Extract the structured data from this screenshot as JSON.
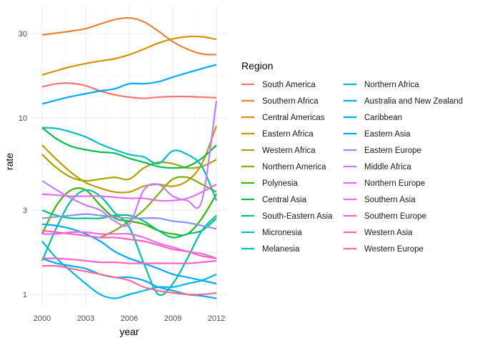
{
  "chart_data": {
    "type": "line",
    "xlabel": "year",
    "ylabel": "rate",
    "x_ticks": [
      2000,
      2003,
      2006,
      2009,
      2012
    ],
    "y_ticks": [
      1,
      3,
      10,
      30
    ],
    "y_scale": "log",
    "xlim": [
      1999.3,
      2012.7
    ],
    "ylim": [
      0.83,
      44
    ],
    "grid": true,
    "legend": {
      "title": "Region",
      "position": "right",
      "columns": 2
    },
    "series": [
      {
        "name": "South America",
        "color": "#F8766D",
        "x": [
          2000,
          2001,
          2002,
          2003,
          2004,
          2005,
          2006,
          2007,
          2008,
          2009,
          2010,
          2011,
          2012
        ],
        "y": [
          15.0,
          15.6,
          15.7,
          15.2,
          14.2,
          13.5,
          13.1,
          12.9,
          13.1,
          13.2,
          13.2,
          13.1,
          13.0
        ]
      },
      {
        "name": "Southern Africa",
        "color": "#EA8331",
        "x": [
          2000,
          2001,
          2002,
          2003,
          2004,
          2005,
          2006,
          2007,
          2008,
          2009,
          2010,
          2011,
          2012
        ],
        "y": [
          29.5,
          30.2,
          31.0,
          32.0,
          34.0,
          36.0,
          36.8,
          35.0,
          31.0,
          27.0,
          24.5,
          23.0,
          22.8
        ]
      },
      {
        "name": "Central Americas",
        "color": "#D89000",
        "x": [
          2000,
          2001,
          2002,
          2003,
          2004,
          2005,
          2006,
          2007,
          2008,
          2009,
          2010,
          2011,
          2012
        ],
        "y": [
          17.5,
          18.5,
          19.5,
          20.3,
          21.0,
          21.6,
          22.8,
          24.5,
          26.5,
          28.0,
          28.8,
          28.8,
          27.8
        ]
      },
      {
        "name": "Eastern Africa",
        "color": "#C09B00",
        "x": [
          2000,
          2001,
          2002,
          2003,
          2004,
          2005,
          2006,
          2007,
          2008,
          2009,
          2010,
          2011,
          2012
        ],
        "y": [
          7.0,
          5.8,
          4.9,
          4.3,
          4.0,
          3.8,
          3.8,
          4.1,
          4.2,
          4.1,
          4.4,
          5.5,
          9.0
        ]
      },
      {
        "name": "Western Africa",
        "color": "#A3A500",
        "x": [
          2000,
          2001,
          2002,
          2003,
          2004,
          2005,
          2006,
          2007,
          2008,
          2009,
          2010,
          2011,
          2012
        ],
        "y": [
          6.2,
          5.2,
          4.6,
          4.4,
          4.5,
          4.6,
          4.5,
          5.2,
          5.6,
          5.5,
          5.2,
          5.3,
          5.8
        ]
      },
      {
        "name": "Northern America",
        "color": "#7CAE00",
        "x": [
          2004,
          2005,
          2006,
          2007,
          2008,
          2009,
          2010,
          2011,
          2012
        ],
        "y": [
          2.1,
          2.3,
          2.6,
          3.0,
          3.7,
          4.5,
          4.6,
          4.2,
          3.8
        ]
      },
      {
        "name": "Polynesia",
        "color": "#39B600",
        "x": [
          2000,
          2001,
          2002,
          2003,
          2004,
          2005,
          2006,
          2007,
          2008,
          2009,
          2010,
          2011,
          2012
        ],
        "y": [
          2.2,
          3.2,
          3.9,
          3.9,
          3.2,
          2.7,
          2.6,
          2.5,
          2.3,
          2.2,
          2.2,
          2.7,
          3.7
        ]
      },
      {
        "name": "Central Asia",
        "color": "#00BB4E",
        "x": [
          2000,
          2001,
          2002,
          2003,
          2004,
          2005,
          2006,
          2007,
          2008,
          2009,
          2010,
          2011,
          2012
        ],
        "y": [
          8.8,
          7.6,
          6.9,
          6.6,
          6.4,
          6.3,
          5.9,
          5.6,
          5.3,
          5.2,
          5.3,
          5.9,
          7.0
        ]
      },
      {
        "name": "South-Eastern Asia",
        "color": "#00BF7D",
        "x": [
          2000,
          2001,
          2002,
          2003,
          2004,
          2005,
          2006,
          2007,
          2008,
          2009,
          2010,
          2011,
          2012
        ],
        "y": [
          3.0,
          2.8,
          2.7,
          2.7,
          2.7,
          2.8,
          2.8,
          2.6,
          2.3,
          2.1,
          2.2,
          2.3,
          2.7
        ]
      },
      {
        "name": "Micronesia",
        "color": "#00C1A3",
        "x": [
          2000,
          2001,
          2002,
          2003,
          2004,
          2005,
          2006,
          2007,
          2008,
          2009,
          2010,
          2011,
          2012
        ],
        "y": [
          1.55,
          2.4,
          3.4,
          3.9,
          3.6,
          2.9,
          2.4,
          1.5,
          1.0,
          1.15,
          1.6,
          2.3,
          2.8
        ]
      },
      {
        "name": "Melanesia",
        "color": "#00BFC4",
        "x": [
          2000,
          2001,
          2002,
          2003,
          2004,
          2005,
          2006,
          2007,
          2008,
          2009,
          2010,
          2011,
          2012
        ],
        "y": [
          8.8,
          8.7,
          8.3,
          7.8,
          7.1,
          6.6,
          6.2,
          6.0,
          5.5,
          6.5,
          6.2,
          5.3,
          3.4
        ]
      },
      {
        "name": "Northern Africa",
        "color": "#00B8E7",
        "x": [
          2000,
          2001,
          2002,
          2003,
          2004,
          2005,
          2006,
          2007,
          2008,
          2009,
          2010,
          2011,
          2012
        ],
        "y": [
          2.0,
          1.6,
          1.35,
          1.15,
          1.0,
          0.95,
          1.0,
          1.05,
          1.1,
          1.1,
          1.15,
          1.2,
          1.3
        ]
      },
      {
        "name": "Australia and New Zealand",
        "color": "#00A9FF",
        "x": [
          2000,
          2001,
          2002,
          2003,
          2004,
          2005,
          2006,
          2007,
          2008,
          2009,
          2010,
          2011,
          2012
        ],
        "y": [
          1.6,
          1.5,
          1.45,
          1.4,
          1.3,
          1.25,
          1.25,
          1.2,
          1.1,
          1.05,
          1.0,
          0.98,
          0.95
        ]
      },
      {
        "name": "Caribbean",
        "color": "#00A9FF",
        "x": [
          2000,
          2001,
          2002,
          2003,
          2004,
          2005,
          2006,
          2007,
          2008,
          2009,
          2010,
          2011,
          2012
        ],
        "y": [
          12.0,
          12.6,
          13.2,
          13.7,
          14.2,
          14.6,
          15.6,
          15.6,
          16.0,
          17.0,
          18.0,
          19.0,
          20.0
        ]
      },
      {
        "name": "Eastern Asia",
        "color": "#00A9FF",
        "x": [
          2000,
          2001,
          2002,
          2003,
          2004,
          2005,
          2006,
          2007,
          2008,
          2009,
          2010,
          2011,
          2012
        ],
        "y": [
          2.5,
          2.45,
          2.35,
          2.2,
          2.0,
          1.75,
          1.6,
          1.5,
          1.4,
          1.3,
          1.25,
          1.2,
          1.15
        ]
      },
      {
        "name": "Eastern Europe",
        "color": "#8494FF",
        "x": [
          2000,
          2001,
          2002,
          2003,
          2004,
          2005,
          2006,
          2007,
          2008,
          2009,
          2010,
          2011,
          2012
        ],
        "y": [
          2.7,
          2.75,
          2.8,
          2.85,
          2.8,
          2.75,
          2.7,
          2.7,
          2.7,
          2.6,
          2.55,
          2.45,
          2.35
        ]
      },
      {
        "name": "Middle Africa",
        "color": "#C77CFF",
        "x": [
          2000,
          2001,
          2002,
          2003,
          2004,
          2005,
          2006,
          2007,
          2008,
          2009,
          2010,
          2011,
          2012
        ],
        "y": [
          4.4,
          3.9,
          3.5,
          3.2,
          3.0,
          2.6,
          2.5,
          3.9,
          4.2,
          3.6,
          3.4,
          3.4,
          12.5
        ]
      },
      {
        "name": "Northern Europe",
        "color": "#E76BF3",
        "x": [
          2000,
          2001,
          2002,
          2003,
          2004,
          2005,
          2006,
          2007,
          2008,
          2009,
          2010,
          2011,
          2012
        ],
        "y": [
          3.7,
          3.65,
          3.6,
          3.6,
          3.6,
          3.55,
          3.5,
          3.5,
          3.4,
          3.4,
          3.5,
          3.8,
          4.2
        ]
      },
      {
        "name": "Southern Asia",
        "color": "#ED68ED",
        "x": [
          2000,
          2001,
          2002,
          2003,
          2004,
          2005,
          2006,
          2007,
          2008,
          2009,
          2010,
          2011,
          2012
        ],
        "y": [
          2.2,
          2.2,
          2.25,
          2.25,
          2.2,
          2.2,
          2.2,
          2.1,
          1.95,
          1.85,
          1.75,
          1.7,
          1.6
        ]
      },
      {
        "name": "Southern Europe",
        "color": "#FF61CC",
        "x": [
          2000,
          2001,
          2002,
          2003,
          2004,
          2005,
          2006,
          2007,
          2008,
          2009,
          2010,
          2011,
          2012
        ],
        "y": [
          1.6,
          1.6,
          1.58,
          1.55,
          1.52,
          1.52,
          1.5,
          1.5,
          1.5,
          1.5,
          1.5,
          1.52,
          1.55
        ]
      },
      {
        "name": "Western Asia",
        "color": "#FF62BC",
        "x": [
          2000,
          2001,
          2002,
          2003,
          2004,
          2005,
          2006,
          2007,
          2008,
          2009,
          2010,
          2011,
          2012
        ],
        "y": [
          2.3,
          2.25,
          2.2,
          2.15,
          2.1,
          2.1,
          2.05,
          2.0,
          1.9,
          1.8,
          1.75,
          1.65,
          1.6
        ]
      },
      {
        "name": "Western Europe",
        "color": "#FF6C91",
        "x": [
          2000,
          2001,
          2002,
          2003,
          2004,
          2005,
          2006,
          2007,
          2008,
          2009,
          2010,
          2011,
          2012
        ],
        "y": [
          1.45,
          1.45,
          1.4,
          1.35,
          1.3,
          1.25,
          1.2,
          1.1,
          1.05,
          1.02,
          1.0,
          1.0,
          1.02
        ]
      }
    ]
  }
}
